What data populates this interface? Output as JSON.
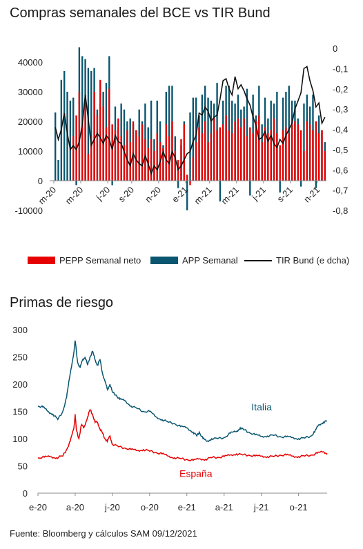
{
  "chart1_title": "Compras semanales del BCE vs TIR Bund",
  "chart2_title": "Primas de riesgo",
  "footer": "Fuente: Bloomberg y cálculos SAM  09/12/2021",
  "legend": {
    "pepp": "PEPP Semanal neto",
    "app": "APP Semanal",
    "bund": "TIR Bund (e dcha)"
  },
  "colors": {
    "pepp": "#e60000",
    "app": "#0a5670",
    "bund": "#111111",
    "italia": "#0a5670",
    "espana": "#e60000"
  },
  "chart_data": [
    {
      "type": "bar",
      "title": "Compras semanales del BCE vs TIR Bund",
      "ylim": [
        -10000,
        40000
      ],
      "y_ticks": [
        "40000",
        "30000",
        "20000",
        "10000",
        "0",
        "-10000"
      ],
      "y2lim": [
        -0.8,
        0.0
      ],
      "y2_ticks": [
        "0",
        "-0,1",
        "-0,2",
        "-0,3",
        "-0,4",
        "-0,5",
        "-0,6",
        "-0,7",
        "-0,8"
      ],
      "x_tick_labels": [
        "m-20",
        "m-20",
        "j-20",
        "s-20",
        "n-20",
        "e-21",
        "m-21",
        "m-21",
        "j-21",
        "s-21",
        "n-21"
      ],
      "x_ticks_week_index": [
        0,
        9,
        18,
        26,
        35,
        44,
        52,
        61,
        70,
        79,
        88
      ],
      "series": [
        {
          "name": "PEPP Semanal neto",
          "values": [
            0,
            0,
            0,
            0,
            0,
            0,
            15000,
            22000,
            30000,
            19000,
            26000,
            9000,
            15000,
            30000,
            22000,
            34000,
            25000,
            18000,
            31000,
            19000,
            17000,
            21000,
            15000,
            12000,
            17000,
            13000,
            20000,
            17000,
            15000,
            19000,
            14000,
            11000,
            14000,
            10000,
            16000,
            13000,
            11000,
            19000,
            15000,
            20000,
            10000,
            7000,
            14000,
            19000,
            2000,
            -1500,
            8000,
            13000,
            18000,
            16000,
            20000,
            13000,
            16000,
            21000,
            17000,
            18000,
            19000,
            22000,
            17000,
            16000,
            20000,
            21000,
            18000,
            21000,
            15000,
            18000,
            16000,
            20000,
            22000,
            13000,
            18000,
            16000,
            17000,
            21000,
            16000,
            12000,
            17000,
            18000,
            16000,
            19000,
            20000,
            19000,
            17000,
            10000,
            20000,
            19000,
            17000,
            20000,
            16000,
            17000,
            10000
          ]
        },
        {
          "name": "APP Semanal",
          "values": [
            23000,
            7000,
            34000,
            37000,
            30000,
            27000,
            28000,
            -1500,
            45000,
            42000,
            41000,
            38000,
            37000,
            38000,
            24000,
            26000,
            30000,
            33000,
            42000,
            -1500,
            25000,
            18000,
            26000,
            24000,
            20000,
            21000,
            19000,
            17000,
            24000,
            20000,
            26000,
            18000,
            27000,
            14000,
            27000,
            20000,
            12000,
            30000,
            32000,
            32000,
            15000,
            -2500,
            12000,
            20000,
            -10000,
            23000,
            28000,
            28000,
            22000,
            29000,
            32000,
            28000,
            27000,
            26000,
            33000,
            -7000,
            27000,
            32000,
            32000,
            27000,
            26000,
            29000,
            24000,
            25000,
            31000,
            -5000,
            29000,
            22000,
            32000,
            19000,
            28000,
            21000,
            27000,
            26000,
            30000,
            -4000,
            28000,
            30000,
            32000,
            27000,
            27000,
            21000,
            -2000,
            26000,
            29000,
            25000,
            29000,
            -2500,
            22000,
            17000,
            13000
          ]
        },
        {
          "name": "TIR Bund (e dcha)",
          "y_axis": "right",
          "values": [
            -0.39,
            -0.45,
            -0.4,
            -0.32,
            -0.42,
            -0.5,
            -0.48,
            -0.5,
            -0.46,
            -0.38,
            -0.23,
            -0.35,
            -0.48,
            -0.45,
            -0.42,
            -0.44,
            -0.47,
            -0.43,
            -0.45,
            -0.5,
            -0.43,
            -0.46,
            -0.47,
            -0.51,
            -0.55,
            -0.58,
            -0.52,
            -0.55,
            -0.57,
            -0.58,
            -0.53,
            -0.57,
            -0.62,
            -0.58,
            -0.6,
            -0.56,
            -0.51,
            -0.55,
            -0.57,
            -0.51,
            -0.54,
            -0.6,
            -0.58,
            -0.55,
            -0.52,
            -0.51,
            -0.46,
            -0.43,
            -0.32,
            -0.33,
            -0.29,
            -0.31,
            -0.36,
            -0.34,
            -0.33,
            -0.25,
            -0.16,
            -0.15,
            -0.2,
            -0.23,
            -0.14,
            -0.2,
            -0.18,
            -0.21,
            -0.25,
            -0.28,
            -0.34,
            -0.38,
            -0.45,
            -0.44,
            -0.41,
            -0.46,
            -0.43,
            -0.47,
            -0.49,
            -0.45,
            -0.47,
            -0.43,
            -0.4,
            -0.37,
            -0.3,
            -0.26,
            -0.22,
            -0.1,
            -0.09,
            -0.16,
            -0.21,
            -0.29,
            -0.27,
            -0.37,
            -0.34
          ]
        }
      ]
    },
    {
      "type": "line",
      "title": "Primas de riesgo",
      "ylim": [
        0,
        300
      ],
      "y_ticks": [
        "300",
        "250",
        "200",
        "150",
        "100",
        "50",
        "0"
      ],
      "x_tick_labels": [
        "e-20",
        "a-20",
        "j-20",
        "o-20",
        "e-21",
        "a-21",
        "j-21",
        "o-21"
      ],
      "x_ticks_month_index": [
        0,
        3,
        6,
        9,
        12,
        15,
        18,
        21
      ],
      "x_range_months": [
        0,
        23.3
      ],
      "series": [
        {
          "name": "Italia",
          "points": [
            [
              0,
              160
            ],
            [
              0.4,
              158
            ],
            [
              0.8,
              150
            ],
            [
              1.2,
              145
            ],
            [
              1.6,
              135
            ],
            [
              2.0,
              150
            ],
            [
              2.3,
              175
            ],
            [
              2.6,
              220
            ],
            [
              2.9,
              260
            ],
            [
              3.0,
              280
            ],
            [
              3.2,
              240
            ],
            [
              3.4,
              230
            ],
            [
              3.6,
              245
            ],
            [
              3.8,
              250
            ],
            [
              4.0,
              235
            ],
            [
              4.2,
              250
            ],
            [
              4.4,
              260
            ],
            [
              4.6,
              245
            ],
            [
              4.8,
              235
            ],
            [
              5.0,
              245
            ],
            [
              5.2,
              220
            ],
            [
              5.4,
              205
            ],
            [
              5.6,
              190
            ],
            [
              5.8,
              200
            ],
            [
              6.0,
              185
            ],
            [
              6.3,
              180
            ],
            [
              6.6,
              172
            ],
            [
              7.0,
              170
            ],
            [
              7.5,
              160
            ],
            [
              8.0,
              155
            ],
            [
              8.5,
              150
            ],
            [
              9.0,
              150
            ],
            [
              9.5,
              140
            ],
            [
              10.0,
              135
            ],
            [
              10.5,
              130
            ],
            [
              11.0,
              128
            ],
            [
              11.5,
              122
            ],
            [
              12.0,
              120
            ],
            [
              12.5,
              112
            ],
            [
              12.8,
              105
            ],
            [
              13.0,
              112
            ],
            [
              13.3,
              100
            ],
            [
              13.6,
              95
            ],
            [
              14.0,
              100
            ],
            [
              14.5,
              100
            ],
            [
              15.0,
              102
            ],
            [
              15.5,
              110
            ],
            [
              16.0,
              113
            ],
            [
              16.3,
              120
            ],
            [
              16.6,
              116
            ],
            [
              17.0,
              112
            ],
            [
              17.5,
              107
            ],
            [
              18.0,
              104
            ],
            [
              18.5,
              105
            ],
            [
              19.0,
              106
            ],
            [
              19.5,
              104
            ],
            [
              20.0,
              103
            ],
            [
              20.5,
              102
            ],
            [
              21.0,
              100
            ],
            [
              21.5,
              101
            ],
            [
              22.0,
              105
            ],
            [
              22.3,
              112
            ],
            [
              22.6,
              125
            ],
            [
              23.0,
              130
            ],
            [
              23.3,
              132
            ]
          ]
        },
        {
          "name": "España",
          "points": [
            [
              0,
              65
            ],
            [
              0.5,
              66
            ],
            [
              1.0,
              67
            ],
            [
              1.5,
              65
            ],
            [
              2.0,
              68
            ],
            [
              2.3,
              80
            ],
            [
              2.6,
              95
            ],
            [
              2.9,
              120
            ],
            [
              3.0,
              145
            ],
            [
              3.1,
              115
            ],
            [
              3.3,
              100
            ],
            [
              3.5,
              125
            ],
            [
              3.7,
              120
            ],
            [
              4.0,
              140
            ],
            [
              4.2,
              153
            ],
            [
              4.4,
              145
            ],
            [
              4.6,
              130
            ],
            [
              4.8,
              130
            ],
            [
              5.0,
              118
            ],
            [
              5.2,
              110
            ],
            [
              5.4,
              100
            ],
            [
              5.6,
              95
            ],
            [
              5.8,
              105
            ],
            [
              6.0,
              90
            ],
            [
              6.5,
              85
            ],
            [
              7.0,
              83
            ],
            [
              7.5,
              80
            ],
            [
              8.0,
              78
            ],
            [
              8.5,
              80
            ],
            [
              9.0,
              77
            ],
            [
              9.5,
              75
            ],
            [
              10.0,
              72
            ],
            [
              10.5,
              68
            ],
            [
              11.0,
              65
            ],
            [
              11.5,
              63
            ],
            [
              12.0,
              62
            ],
            [
              12.5,
              60
            ],
            [
              13.0,
              63
            ],
            [
              13.5,
              62
            ],
            [
              14.0,
              65
            ],
            [
              14.5,
              66
            ],
            [
              15.0,
              67
            ],
            [
              15.5,
              70
            ],
            [
              16.0,
              72
            ],
            [
              16.5,
              70
            ],
            [
              17.0,
              70
            ],
            [
              17.5,
              68
            ],
            [
              18.0,
              68
            ],
            [
              18.5,
              67
            ],
            [
              19.0,
              67
            ],
            [
              19.5,
              70
            ],
            [
              20.0,
              70
            ],
            [
              20.5,
              68
            ],
            [
              21.0,
              67
            ],
            [
              21.5,
              68
            ],
            [
              22.0,
              70
            ],
            [
              22.5,
              73
            ],
            [
              23.0,
              76
            ],
            [
              23.3,
              73
            ]
          ]
        }
      ],
      "annotations": [
        "Italia",
        "España"
      ]
    }
  ]
}
